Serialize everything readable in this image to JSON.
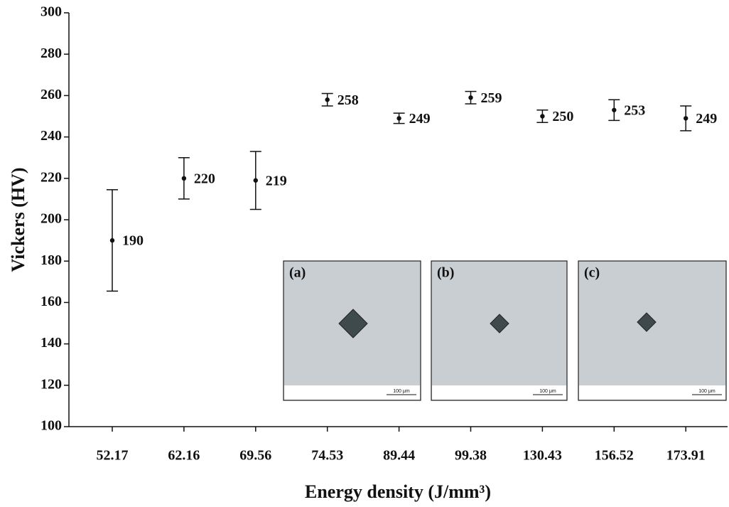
{
  "chart_data": {
    "type": "errorbar",
    "ylabel": "Vickers (HV)",
    "xlabel": "Energy density (J/mm³)",
    "categories": [
      "52.17",
      "62.16",
      "69.56",
      "74.53",
      "89.44",
      "99.38",
      "130.43",
      "156.52",
      "173.91"
    ],
    "values": [
      190,
      220,
      219,
      258,
      249,
      259,
      250,
      253,
      249
    ],
    "errors": [
      24.5,
      10,
      14,
      3,
      2.5,
      3,
      3,
      5,
      6
    ],
    "color": "#111111",
    "ylim": [
      100,
      300
    ],
    "yticks": [
      100,
      120,
      140,
      160,
      180,
      200,
      220,
      240,
      260,
      280,
      300
    ],
    "insets": [
      {
        "label": "(a)",
        "scale_bar": "100 μm"
      },
      {
        "label": "(b)",
        "scale_bar": "100 μm"
      },
      {
        "label": "(c)",
        "scale_bar": "100 μm"
      }
    ]
  }
}
